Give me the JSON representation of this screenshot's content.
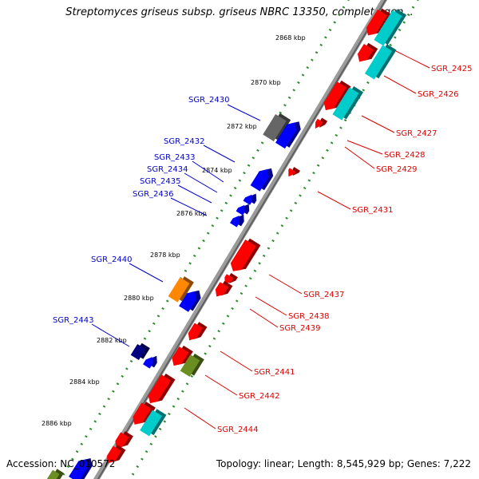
{
  "title": "Streptomyces griseus subsp. griseus NBRC 13350, complete gen...",
  "footer": {
    "accession": "Accession: NC_010572",
    "topology": "Topology: linear; Length: 8,545,929 bp; Genes: 7,222"
  },
  "colors": {
    "backbone": "#8c8c8c",
    "tick": "#2e8b2e",
    "forward_label": "#0000cc",
    "reverse_label": "#dd0000",
    "red": "#ff0000",
    "blue": "#0000ff",
    "cyan": "#00cccc",
    "gray": "#666666",
    "orange": "#ff8800",
    "navy": "#000080",
    "olive": "#6b8e23"
  },
  "scale_labels": [
    "2868 kbp",
    "2870 kbp",
    "2872 kbp",
    "2874 kbp",
    "2876 kbp",
    "2878 kbp",
    "2880 kbp",
    "2882 kbp",
    "2884 kbp",
    "2886 kbp"
  ],
  "forward_genes": [
    "SGR_2430",
    "SGR_2432",
    "SGR_2433",
    "SGR_2434",
    "SGR_2435",
    "SGR_2436",
    "SGR_2440",
    "SGR_2443"
  ],
  "reverse_genes": [
    "SGR_2425",
    "SGR_2426",
    "SGR_2427",
    "SGR_2428",
    "SGR_2429",
    "SGR_2431",
    "SGR_2437",
    "SGR_2438",
    "SGR_2439",
    "SGR_2441",
    "SGR_2442",
    "SGR_2444"
  ]
}
